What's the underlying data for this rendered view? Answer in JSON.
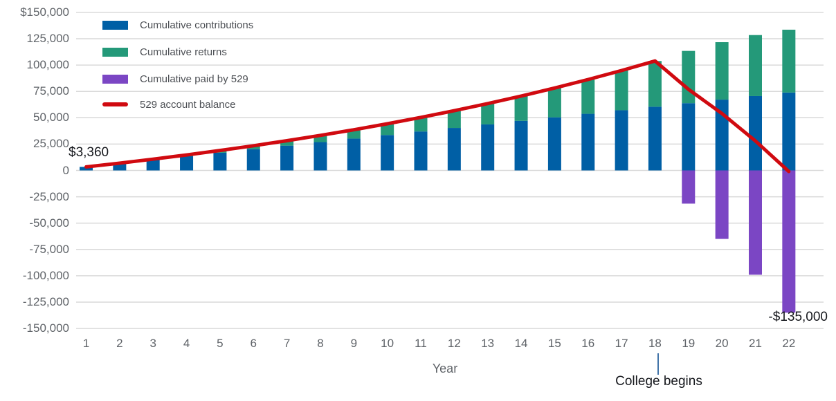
{
  "chart_data": {
    "type": "bar",
    "stacked": true,
    "grid": "horizontal",
    "legend_position": "top-left",
    "xlabel": "Year",
    "x": [
      "1",
      "2",
      "3",
      "4",
      "5",
      "6",
      "7",
      "8",
      "9",
      "10",
      "11",
      "12",
      "13",
      "14",
      "15",
      "16",
      "17",
      "18",
      "19",
      "20",
      "21",
      "22"
    ],
    "y_axis": {
      "min": -150000,
      "max": 150000,
      "interval": 25000,
      "ticks": [
        {
          "label": "$150,000",
          "value": 150000
        },
        {
          "label": "125,000",
          "value": 125000
        },
        {
          "label": "100,000",
          "value": 100000
        },
        {
          "label": "75,000",
          "value": 75000
        },
        {
          "label": "50,000",
          "value": 50000
        },
        {
          "label": "25,000",
          "value": 25000
        },
        {
          "label": "0",
          "value": 0
        },
        {
          "label": "-25,000",
          "value": -25000
        },
        {
          "label": "-50,000",
          "value": -50000
        },
        {
          "label": "-75,000",
          "value": -75000
        },
        {
          "label": "-100,000",
          "value": -100000
        },
        {
          "label": "-125,000",
          "value": -125000
        },
        {
          "label": "-150,000",
          "value": -150000
        }
      ]
    },
    "series": [
      {
        "name": "Cumulative contributions",
        "type": "bar",
        "color": "#005fa5",
        "values": [
          3360,
          6720,
          10080,
          13440,
          16800,
          20160,
          23520,
          26880,
          30240,
          33600,
          36960,
          40320,
          43680,
          47040,
          50400,
          53760,
          57120,
          60480,
          63840,
          67200,
          70560,
          73920
        ]
      },
      {
        "name": "Cumulative returns",
        "type": "bar",
        "color": "#249979",
        "values": [
          0,
          200,
          620,
          1260,
          2140,
          3280,
          4680,
          6370,
          8370,
          10690,
          13340,
          16360,
          19760,
          23570,
          27810,
          32500,
          37680,
          43360,
          49590,
          54510,
          57910,
          59650
        ]
      },
      {
        "name": "Cumulative paid by 529",
        "type": "bar",
        "color": "#7b46c4",
        "values": [
          0,
          0,
          0,
          0,
          0,
          0,
          0,
          0,
          0,
          0,
          0,
          0,
          0,
          0,
          0,
          0,
          0,
          0,
          -31500,
          -65000,
          -99000,
          -135000
        ]
      },
      {
        "name": "529 account balance",
        "type": "line",
        "color": "#d00a10",
        "values": [
          3360,
          6920,
          10700,
          14700,
          18940,
          23440,
          28200,
          33250,
          38610,
          44290,
          50300,
          56680,
          63440,
          70610,
          78210,
          86260,
          94800,
          103840,
          77000,
          54000,
          28000,
          -1000
        ]
      }
    ],
    "annotations": [
      {
        "text": "$3,360",
        "target": "529 account balance at year 1"
      },
      {
        "text": "-$135,000",
        "target": "cumulative paid by 529 at year 22"
      },
      {
        "text": "College begins",
        "target": "year 18"
      }
    ],
    "colors": {
      "gridline": "#d9d9d9",
      "axis_text": "#5f6368",
      "legend_text": "#4c4f54",
      "annotation_text": "#16181d",
      "college_connector": "#4173a8"
    }
  }
}
